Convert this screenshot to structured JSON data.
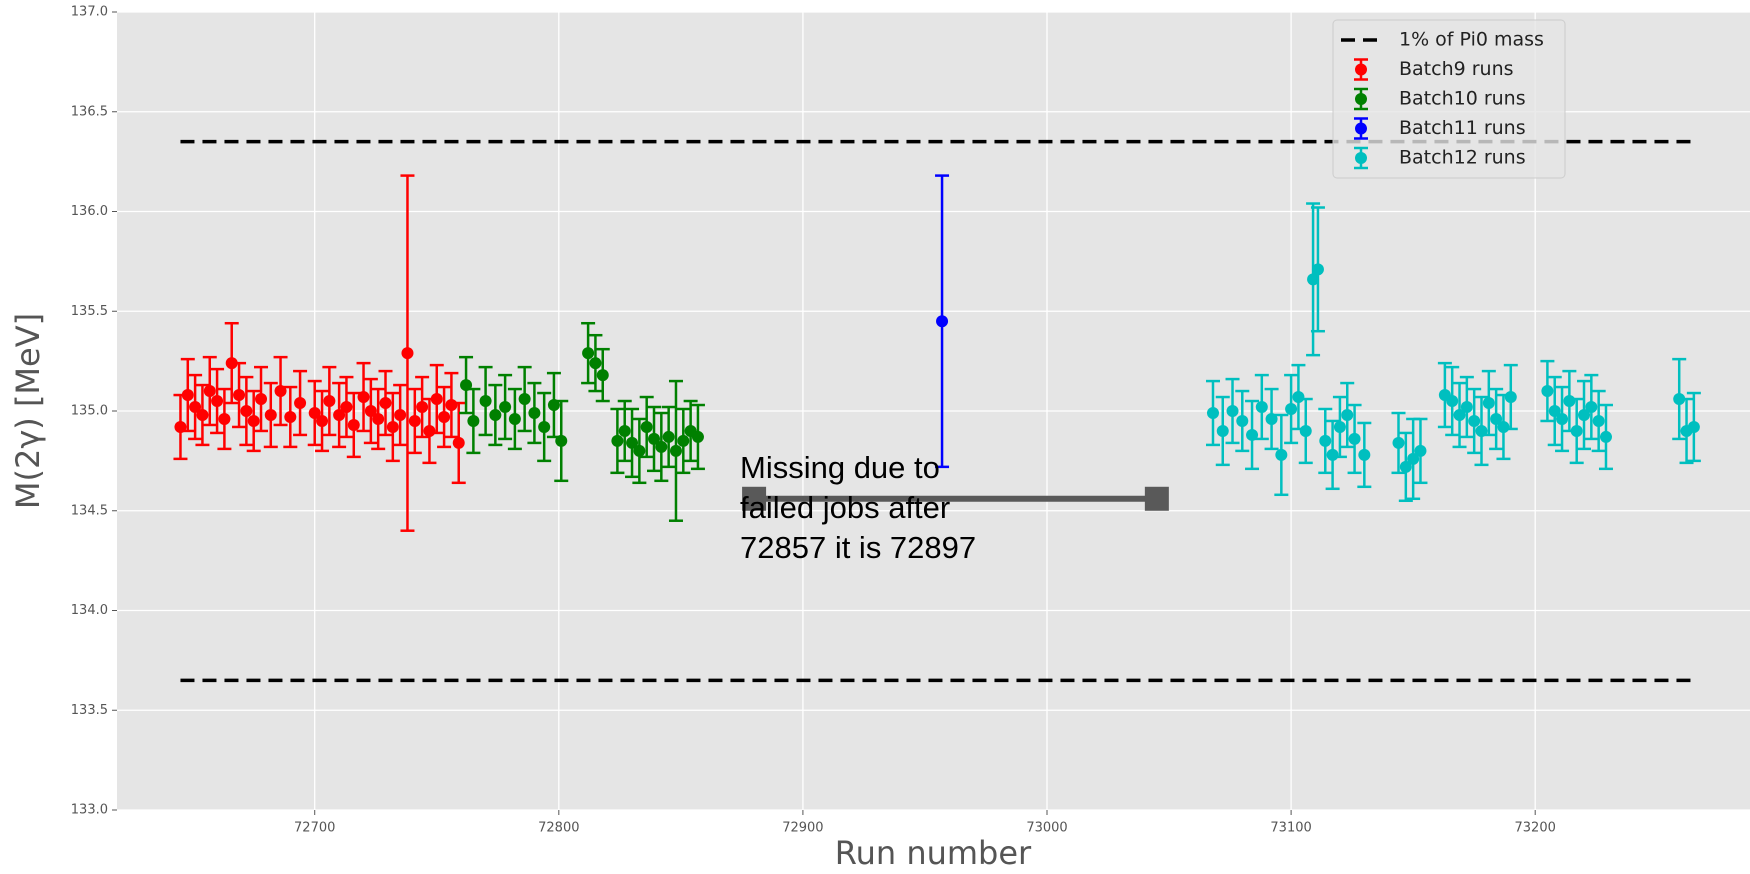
{
  "chart_data": {
    "type": "errorbar",
    "xlabel": "Run number",
    "ylabel": "M(2γ) [MeV]",
    "xlim": [
      72619,
      73288
    ],
    "xticks": [
      72700,
      72800,
      72900,
      73000,
      73100,
      73200
    ],
    "ylim": [
      133,
      137
    ],
    "yticks": [
      {
        "value": 133,
        "label": "133.0"
      },
      133.5,
      {
        "value": 134,
        "label": "134.0"
      },
      134.5,
      {
        "value": 135,
        "label": "135.0"
      },
      135.5,
      {
        "value": 136,
        "label": "136.0"
      },
      136.5,
      {
        "value": 137,
        "label": "137.0"
      }
    ],
    "grid": true,
    "legend": "upper right",
    "hlines": {
      "name": "1% of Pi0 mass",
      "color": "#000000",
      "values": [
        136.35,
        133.65
      ],
      "xmin": 72645,
      "xmax": 73265
    },
    "series": [
      {
        "name": "Batch9 runs",
        "color": "#ff0000",
        "x": [
          72645,
          72648,
          72651,
          72654,
          72657,
          72660,
          72663,
          72666,
          72669,
          72672,
          72675,
          72678,
          72682,
          72686,
          72690,
          72694,
          72700,
          72703,
          72706,
          72710,
          72713,
          72716,
          72720,
          72723,
          72726,
          72729,
          72732,
          72735,
          72738,
          72741,
          72744,
          72747,
          72750,
          72753,
          72756,
          72759
        ],
        "values": [
          134.92,
          135.08,
          135.02,
          134.98,
          135.1,
          135.05,
          134.96,
          135.24,
          135.08,
          135.0,
          134.95,
          135.06,
          134.98,
          135.1,
          134.97,
          135.04,
          134.99,
          134.95,
          135.05,
          134.98,
          135.02,
          134.93,
          135.07,
          135.0,
          134.96,
          135.04,
          134.92,
          134.98,
          135.29,
          134.95,
          135.02,
          134.9,
          135.06,
          134.97,
          135.03,
          134.84
        ],
        "errors": [
          0.16,
          0.18,
          0.16,
          0.15,
          0.17,
          0.16,
          0.15,
          0.2,
          0.16,
          0.17,
          0.15,
          0.16,
          0.16,
          0.17,
          0.15,
          0.16,
          0.16,
          0.15,
          0.17,
          0.16,
          0.15,
          0.16,
          0.17,
          0.16,
          0.15,
          0.16,
          0.17,
          0.15,
          0.89,
          0.16,
          0.15,
          0.16,
          0.17,
          0.15,
          0.16,
          0.2
        ]
      },
      {
        "name": "Batch10 runs",
        "color": "#008000",
        "x": [
          72762,
          72765,
          72770,
          72774,
          72778,
          72782,
          72786,
          72790,
          72794,
          72798,
          72801,
          72812,
          72815,
          72818,
          72824,
          72827,
          72830,
          72833,
          72836,
          72839,
          72842,
          72845,
          72848,
          72851,
          72854,
          72857
        ],
        "values": [
          135.13,
          134.95,
          135.05,
          134.98,
          135.02,
          134.96,
          135.06,
          134.99,
          134.92,
          135.03,
          134.85,
          135.29,
          135.24,
          135.18,
          134.85,
          134.9,
          134.84,
          134.8,
          134.92,
          134.86,
          134.82,
          134.87,
          134.8,
          134.85,
          134.9,
          134.87
        ],
        "errors": [
          0.14,
          0.16,
          0.17,
          0.15,
          0.16,
          0.15,
          0.16,
          0.15,
          0.17,
          0.16,
          0.2,
          0.15,
          0.14,
          0.13,
          0.16,
          0.15,
          0.17,
          0.16,
          0.15,
          0.16,
          0.17,
          0.15,
          0.35,
          0.16,
          0.15,
          0.16
        ]
      },
      {
        "name": "Batch11 runs",
        "color": "#0000ff",
        "x": [
          72957
        ],
        "values": [
          135.45
        ],
        "errors": [
          0.73
        ]
      },
      {
        "name": "Batch12 runs",
        "color": "#00bfbf",
        "x": [
          73068,
          73072,
          73076,
          73080,
          73084,
          73088,
          73092,
          73096,
          73100,
          73103,
          73106,
          73109,
          73111,
          73114,
          73117,
          73120,
          73123,
          73126,
          73130,
          73144,
          73147,
          73150,
          73153,
          73163,
          73166,
          73169,
          73172,
          73175,
          73178,
          73181,
          73184,
          73187,
          73190,
          73205,
          73208,
          73211,
          73214,
          73217,
          73220,
          73223,
          73226,
          73229,
          73259,
          73262,
          73265
        ],
        "values": [
          134.99,
          134.9,
          135.0,
          134.95,
          134.88,
          135.02,
          134.96,
          134.78,
          135.01,
          135.07,
          134.9,
          135.66,
          135.71,
          134.85,
          134.78,
          134.92,
          134.98,
          134.86,
          134.78,
          134.84,
          134.72,
          134.76,
          134.8,
          135.08,
          135.05,
          134.98,
          135.02,
          134.95,
          134.9,
          135.04,
          134.96,
          134.92,
          135.07,
          135.1,
          135.0,
          134.96,
          135.05,
          134.9,
          134.98,
          135.02,
          134.95,
          134.87,
          135.06,
          134.9,
          134.92
        ],
        "errors": [
          0.16,
          0.17,
          0.16,
          0.15,
          0.17,
          0.16,
          0.15,
          0.2,
          0.17,
          0.16,
          0.16,
          0.38,
          0.31,
          0.16,
          0.17,
          0.15,
          0.16,
          0.17,
          0.16,
          0.15,
          0.17,
          0.2,
          0.16,
          0.16,
          0.17,
          0.16,
          0.15,
          0.16,
          0.17,
          0.16,
          0.15,
          0.16,
          0.16,
          0.15,
          0.17,
          0.16,
          0.15,
          0.16,
          0.17,
          0.16,
          0.15,
          0.16,
          0.2,
          0.16,
          0.17
        ]
      }
    ],
    "annotation": {
      "lines": [
        "Missing due to",
        "failed jobs after",
        "72857 it is 72897"
      ],
      "color": "#595959",
      "bar_x": [
        72880,
        73045
      ],
      "bar_y": 134.56
    }
  }
}
